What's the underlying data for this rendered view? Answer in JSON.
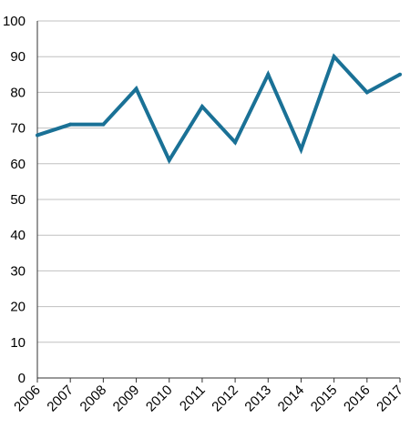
{
  "chart_data": {
    "type": "line",
    "title": "",
    "xlabel": "",
    "ylabel": "",
    "categories": [
      "2006",
      "2007",
      "2008",
      "2009",
      "2010",
      "2011",
      "2012",
      "2013",
      "2014",
      "2015",
      "2016",
      "2017"
    ],
    "series": [
      {
        "values": [
          68,
          71,
          71,
          81,
          61,
          76,
          66,
          85,
          64,
          90,
          80,
          85
        ]
      }
    ],
    "ylim": [
      0,
      100
    ],
    "yticks": [
      0,
      10,
      20,
      30,
      40,
      50,
      60,
      70,
      80,
      90,
      100
    ],
    "grid": "horizontal",
    "legend": "none",
    "colors": {
      "line": "#1a7196",
      "grid": "#c0c0c0",
      "axis": "#333333"
    }
  }
}
